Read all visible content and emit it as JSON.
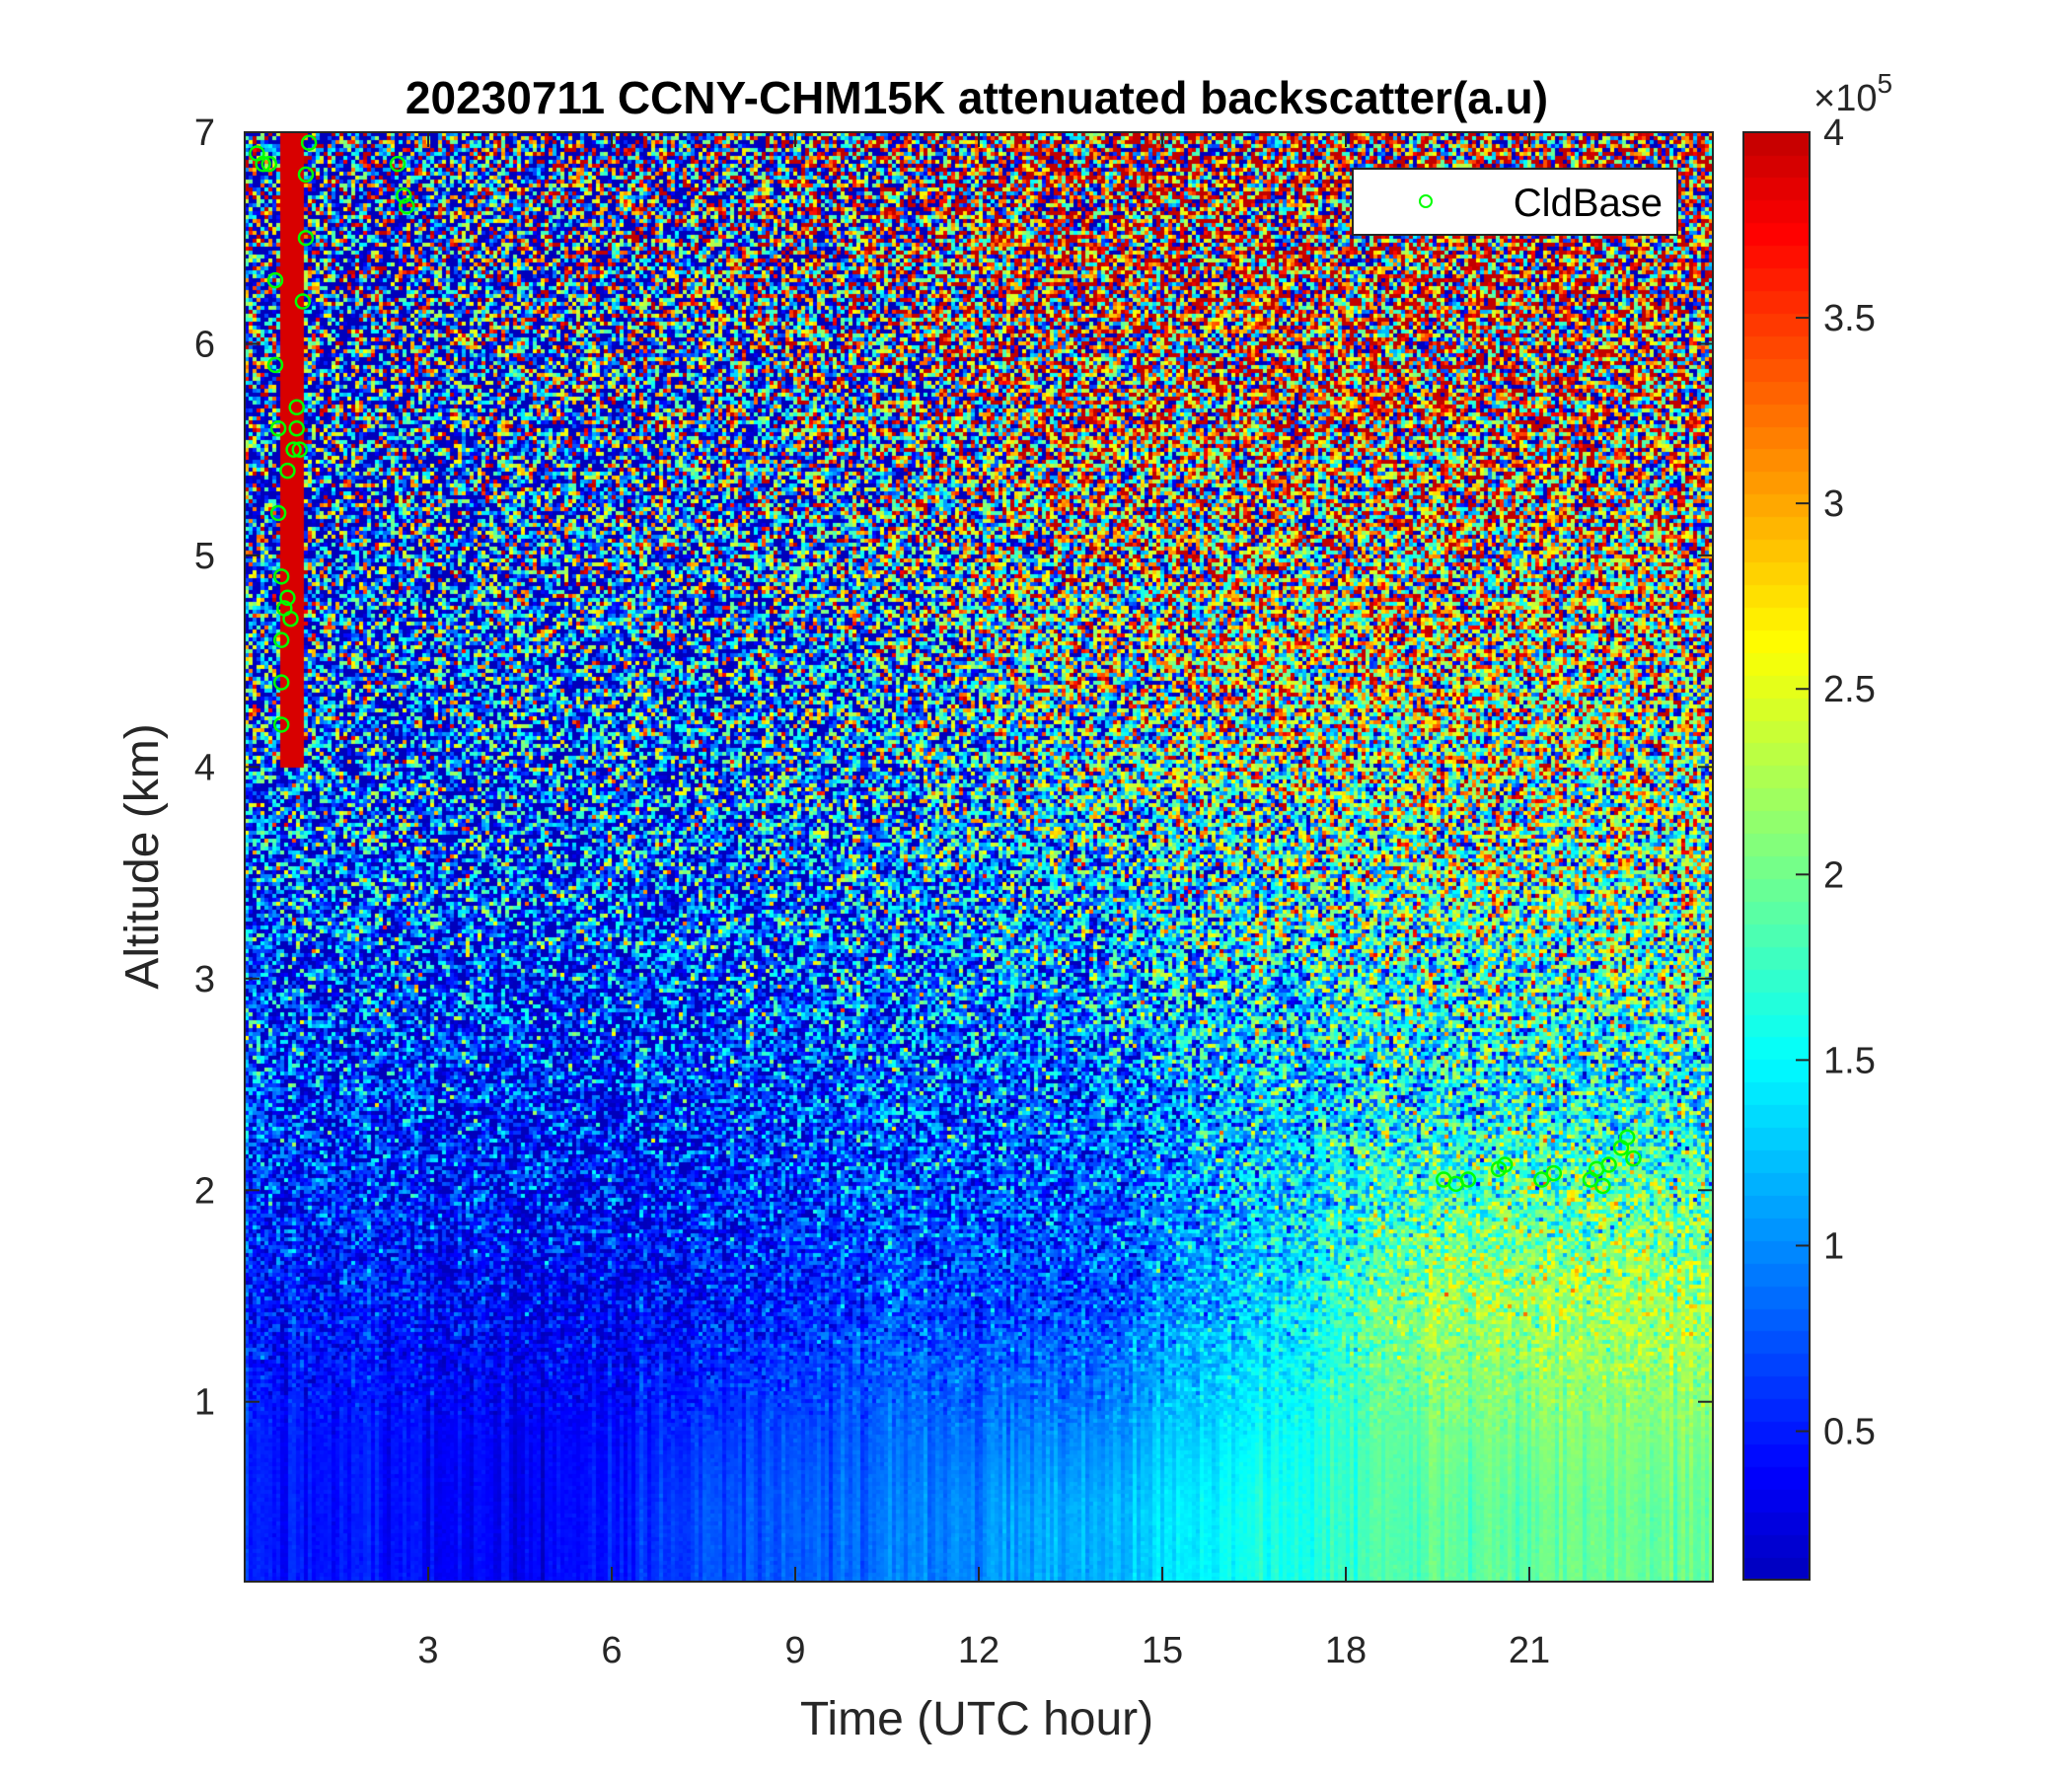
{
  "chart_data": {
    "type": "heatmap",
    "title": "20230711 CCNY-CHM15K attenuated backscatter(a.u)",
    "xlabel": "Time (UTC hour)",
    "ylabel": "Altitude (km)",
    "xlim": [
      0,
      24
    ],
    "ylim": [
      0.15,
      7
    ],
    "xticks": [
      3,
      6,
      9,
      12,
      15,
      18,
      21
    ],
    "xtick_labels": [
      "3",
      "6",
      "9",
      "12",
      "15",
      "18",
      "21"
    ],
    "yticks": [
      1,
      2,
      3,
      4,
      5,
      6,
      7
    ],
    "ytick_labels": [
      "1",
      "2",
      "3",
      "4",
      "5",
      "6",
      "7"
    ],
    "colormap": "jet",
    "colorbar": {
      "clim": [
        0.1,
        4
      ],
      "exponent_label": "×10",
      "exponent": "5",
      "ticks": [
        0.5,
        1,
        1.5,
        2,
        2.5,
        3,
        3.5,
        4
      ],
      "tick_labels": [
        "0.5",
        "1",
        "1.5",
        "2",
        "2.5",
        "3",
        "3.5",
        "4"
      ]
    },
    "approx_field": {
      "time_centers": [
        1.5,
        4.5,
        7.5,
        10.5,
        13.5,
        16.5,
        19.5,
        22.5
      ],
      "altitude_centers": [
        0.5,
        1.5,
        2.5,
        3.5,
        4.5,
        5.5,
        6.5
      ],
      "values_x1e5": [
        [
          0.5,
          0.3,
          0.7,
          0.9,
          1.1,
          1.6,
          1.9,
          2.0
        ],
        [
          0.5,
          0.3,
          0.4,
          0.7,
          0.6,
          1.3,
          2.2,
          2.3
        ],
        [
          0.6,
          0.4,
          0.5,
          0.8,
          0.7,
          1.2,
          1.4,
          1.5
        ],
        [
          0.7,
          0.6,
          0.7,
          0.9,
          1.2,
          1.6,
          1.9,
          2.0
        ],
        [
          0.8,
          0.8,
          0.9,
          1.2,
          1.7,
          2.2,
          2.3,
          2.2
        ],
        [
          0.8,
          0.9,
          1.1,
          1.6,
          2.2,
          2.5,
          2.5,
          2.4
        ],
        [
          0.9,
          1.0,
          1.3,
          1.9,
          2.5,
          2.7,
          2.6,
          2.5
        ]
      ]
    },
    "legend": {
      "position": "top-right",
      "entries": [
        "CldBase"
      ]
    },
    "series": [
      {
        "name": "CldBase",
        "marker": "circle",
        "color": "#00ff00",
        "points": [
          [
            0.2,
            6.9
          ],
          [
            0.3,
            6.85
          ],
          [
            0.4,
            6.85
          ],
          [
            0.5,
            6.3
          ],
          [
            0.5,
            5.9
          ],
          [
            0.55,
            5.6
          ],
          [
            0.55,
            5.2
          ],
          [
            0.6,
            4.9
          ],
          [
            0.6,
            4.6
          ],
          [
            0.6,
            4.4
          ],
          [
            0.6,
            4.2
          ],
          [
            0.65,
            4.75
          ],
          [
            0.7,
            4.8
          ],
          [
            0.7,
            5.4
          ],
          [
            0.75,
            4.7
          ],
          [
            0.8,
            5.5
          ],
          [
            0.85,
            5.6
          ],
          [
            0.85,
            5.7
          ],
          [
            0.9,
            5.5
          ],
          [
            0.95,
            6.2
          ],
          [
            1.0,
            6.5
          ],
          [
            1.0,
            6.8
          ],
          [
            1.05,
            6.95
          ],
          [
            2.5,
            6.85
          ],
          [
            2.6,
            6.7
          ],
          [
            2.65,
            6.65
          ],
          [
            19.6,
            2.05
          ],
          [
            19.8,
            2.03
          ],
          [
            20.0,
            2.05
          ],
          [
            20.5,
            2.1
          ],
          [
            20.6,
            2.12
          ],
          [
            21.2,
            2.05
          ],
          [
            21.4,
            2.08
          ],
          [
            22.0,
            2.05
          ],
          [
            22.1,
            2.1
          ],
          [
            22.2,
            2.02
          ],
          [
            22.3,
            2.12
          ],
          [
            22.5,
            2.2
          ],
          [
            22.6,
            2.25
          ],
          [
            22.7,
            2.15
          ]
        ]
      }
    ]
  }
}
